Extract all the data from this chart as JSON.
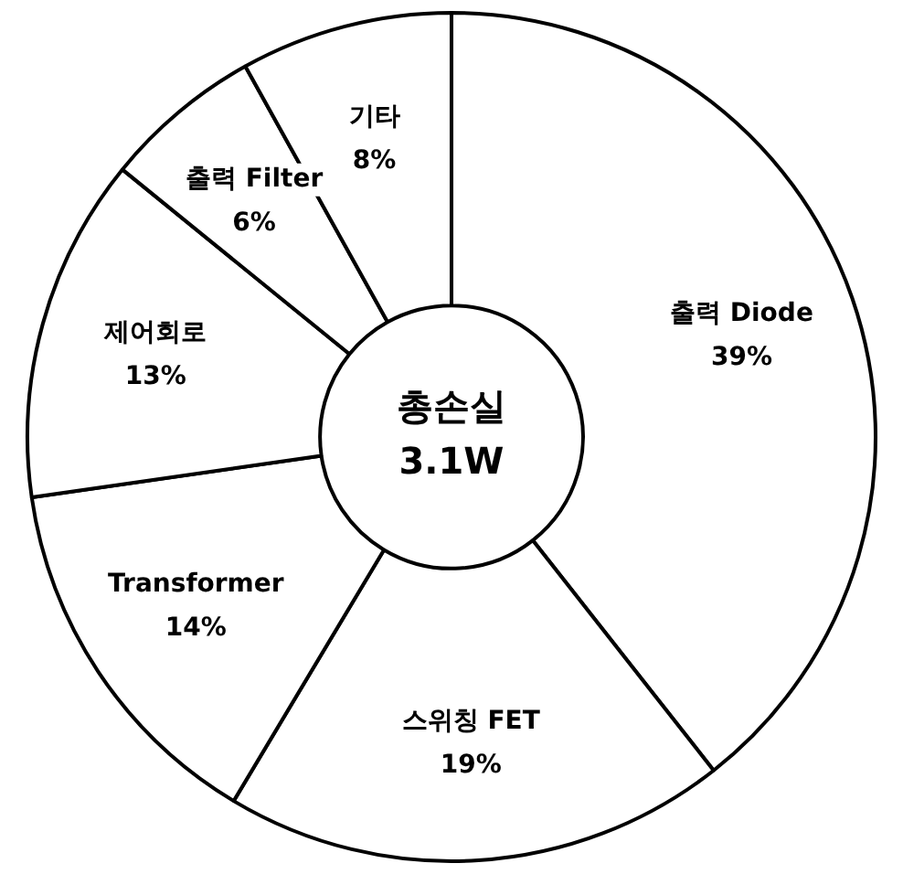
{
  "chart_data": {
    "type": "donut",
    "categories": [
      "출력 Diode",
      "스위칭 FET",
      "Transformer",
      "제어회로",
      "출력 Filter",
      "기타"
    ],
    "values": [
      39,
      19,
      14,
      13,
      6,
      8
    ],
    "value_labels": [
      "39%",
      "19%",
      "14%",
      "13%",
      "6%",
      "8%"
    ],
    "colors": [
      "#ffffff",
      "#ffffff",
      "#ffffff",
      "#ffffff",
      "#ffffff",
      "#ffffff"
    ],
    "annotations": [
      "총손실",
      "3.1W"
    ],
    "legend": false
  }
}
